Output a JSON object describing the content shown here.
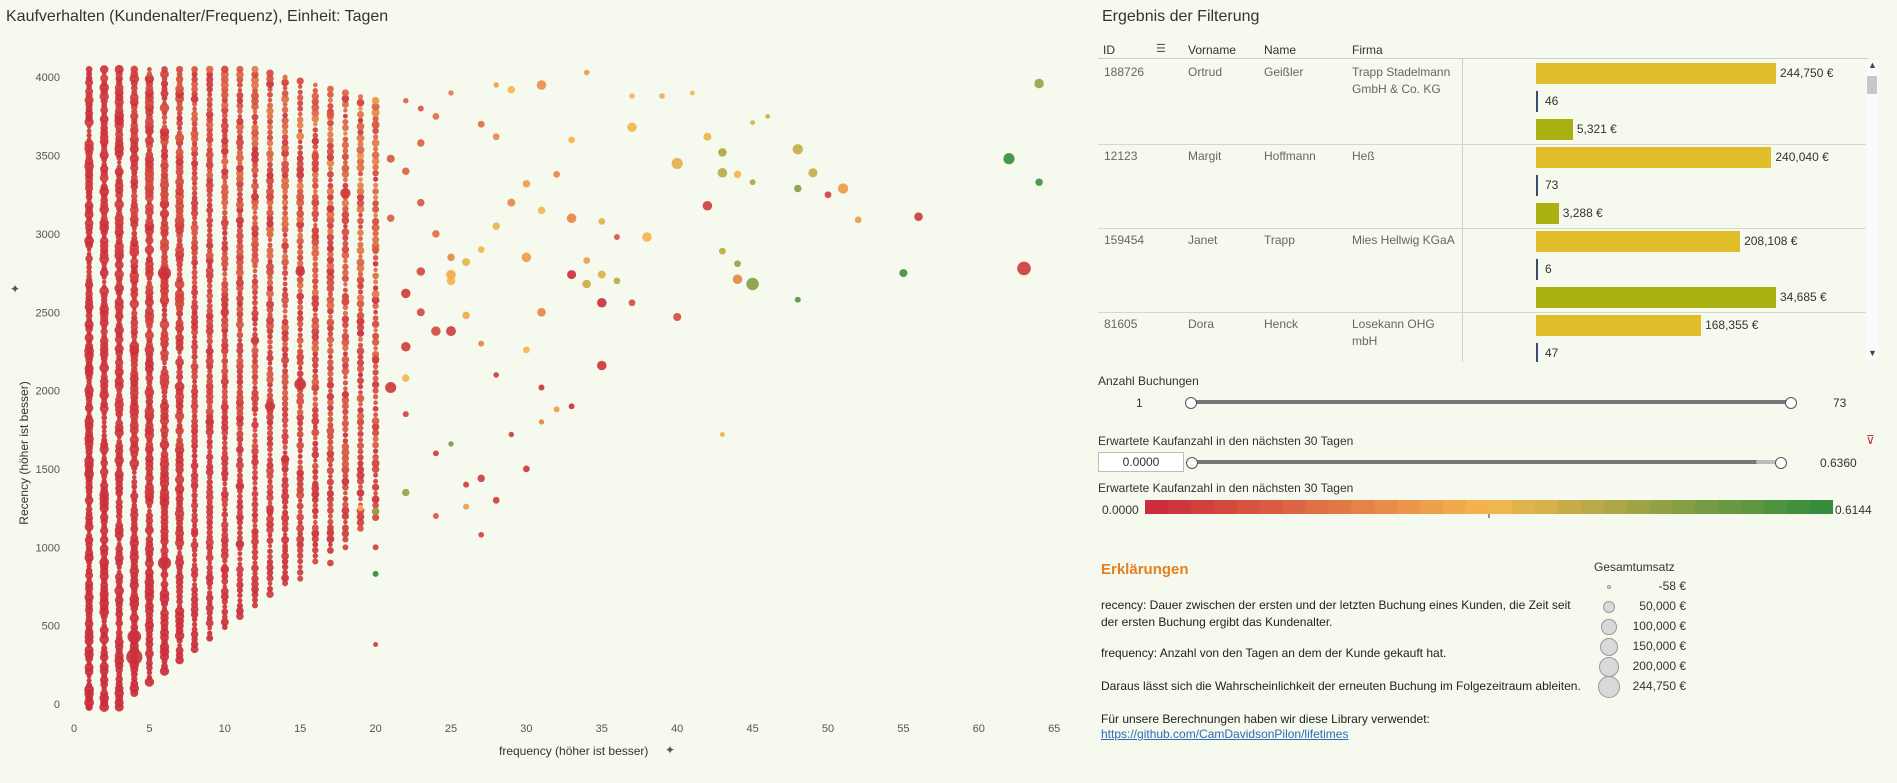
{
  "scatter": {
    "title": "Kaufverhalten (Kundenalter/Frequenz), Einheit: Tagen",
    "xlabel": "frequency (höher ist besser)",
    "ylabel": "Recency (höher ist besser)",
    "xticks": [
      "0",
      "5",
      "10",
      "15",
      "20",
      "25",
      "30",
      "35",
      "40",
      "45",
      "50",
      "55",
      "60",
      "65"
    ],
    "yticks": [
      "0",
      "500",
      "1000",
      "1500",
      "2000",
      "2500",
      "3000",
      "3500",
      "4000"
    ]
  },
  "chart_data": {
    "type": "scatter",
    "title": "Kaufverhalten (Kundenalter/Frequenz), Einheit: Tagen",
    "xlabel": "frequency (höher ist besser)",
    "ylabel": "Recency (höher ist besser)",
    "xlim": [
      0,
      65
    ],
    "ylim": [
      0,
      4000
    ],
    "grid": false,
    "color_scale": {
      "min": 0.0,
      "max": 0.6144,
      "low_color": "#c8283a",
      "mid_color": "#f6b74e",
      "high_color": "#2e8b3c"
    },
    "columns": {
      "x_range": [
        1,
        20
      ],
      "y_range": [
        -20,
        4050
      ]
    },
    "points": [
      {
        "x": 22,
        "y": 3850,
        "v": 0.12,
        "s": 7000
      },
      {
        "x": 25,
        "y": 3900,
        "v": 0.18,
        "s": 7000
      },
      {
        "x": 28,
        "y": 3950,
        "v": 0.25,
        "s": 7000
      },
      {
        "x": 29,
        "y": 3920,
        "v": 0.3,
        "s": 20000
      },
      {
        "x": 31,
        "y": 3950,
        "v": 0.22,
        "s": 40000
      },
      {
        "x": 34,
        "y": 4030,
        "v": 0.25,
        "s": 8000
      },
      {
        "x": 37,
        "y": 3880,
        "v": 0.3,
        "s": 8000
      },
      {
        "x": 39,
        "y": 3880,
        "v": 0.28,
        "s": 8000
      },
      {
        "x": 41,
        "y": 3900,
        "v": 0.3,
        "s": 5000
      },
      {
        "x": 45,
        "y": 3710,
        "v": 0.35,
        "s": 5000
      },
      {
        "x": 46,
        "y": 3750,
        "v": 0.38,
        "s": 4000
      },
      {
        "x": 64,
        "y": 3960,
        "v": 0.45,
        "s": 40000
      },
      {
        "x": 37,
        "y": 3680,
        "v": 0.3,
        "s": 40000
      },
      {
        "x": 42,
        "y": 3620,
        "v": 0.32,
        "s": 25000
      },
      {
        "x": 43,
        "y": 3520,
        "v": 0.42,
        "s": 30000
      },
      {
        "x": 48,
        "y": 3540,
        "v": 0.38,
        "s": 50000
      },
      {
        "x": 40,
        "y": 3450,
        "v": 0.34,
        "s": 60000
      },
      {
        "x": 43,
        "y": 3390,
        "v": 0.4,
        "s": 40000
      },
      {
        "x": 45,
        "y": 3330,
        "v": 0.42,
        "s": 10000
      },
      {
        "x": 48,
        "y": 3290,
        "v": 0.48,
        "s": 20000
      },
      {
        "x": 49,
        "y": 3390,
        "v": 0.38,
        "s": 35000
      },
      {
        "x": 51,
        "y": 3290,
        "v": 0.25,
        "s": 50000
      },
      {
        "x": 50,
        "y": 3250,
        "v": 0.06,
        "s": 15000
      },
      {
        "x": 62,
        "y": 3480,
        "v": 0.6,
        "s": 60000
      },
      {
        "x": 64,
        "y": 3330,
        "v": 0.58,
        "s": 20000
      },
      {
        "x": 56,
        "y": 3110,
        "v": 0.04,
        "s": 30000
      },
      {
        "x": 52,
        "y": 3090,
        "v": 0.25,
        "s": 15000
      },
      {
        "x": 44,
        "y": 3380,
        "v": 0.3,
        "s": 20000
      },
      {
        "x": 42,
        "y": 3180,
        "v": 0.05,
        "s": 40000
      },
      {
        "x": 38,
        "y": 2980,
        "v": 0.3,
        "s": 40000
      },
      {
        "x": 43,
        "y": 2890,
        "v": 0.4,
        "s": 15000
      },
      {
        "x": 44,
        "y": 2810,
        "v": 0.45,
        "s": 15000
      },
      {
        "x": 44,
        "y": 2710,
        "v": 0.2,
        "s": 40000
      },
      {
        "x": 45,
        "y": 2680,
        "v": 0.48,
        "s": 80000
      },
      {
        "x": 48,
        "y": 2580,
        "v": 0.55,
        "s": 10000
      },
      {
        "x": 55,
        "y": 2750,
        "v": 0.58,
        "s": 25000
      },
      {
        "x": 63,
        "y": 2780,
        "v": 0.05,
        "s": 100000
      },
      {
        "x": 40,
        "y": 2470,
        "v": 0.08,
        "s": 25000
      },
      {
        "x": 37,
        "y": 2560,
        "v": 0.08,
        "s": 15000
      },
      {
        "x": 36,
        "y": 2700,
        "v": 0.4,
        "s": 15000
      },
      {
        "x": 35,
        "y": 2740,
        "v": 0.35,
        "s": 25000
      },
      {
        "x": 33,
        "y": 2740,
        "v": 0.02,
        "s": 35000
      },
      {
        "x": 34,
        "y": 2680,
        "v": 0.38,
        "s": 30000
      },
      {
        "x": 34,
        "y": 2830,
        "v": 0.25,
        "s": 15000
      },
      {
        "x": 35,
        "y": 2560,
        "v": 0.02,
        "s": 40000
      },
      {
        "x": 30,
        "y": 2850,
        "v": 0.25,
        "s": 40000
      },
      {
        "x": 31,
        "y": 2500,
        "v": 0.2,
        "s": 30000
      },
      {
        "x": 33,
        "y": 3100,
        "v": 0.2,
        "s": 40000
      },
      {
        "x": 35,
        "y": 3080,
        "v": 0.35,
        "s": 15000
      },
      {
        "x": 36,
        "y": 2980,
        "v": 0.1,
        "s": 10000
      },
      {
        "x": 35,
        "y": 2160,
        "v": 0.03,
        "s": 40000
      },
      {
        "x": 31,
        "y": 2020,
        "v": 0.02,
        "s": 10000
      },
      {
        "x": 33,
        "y": 1900,
        "v": 0.02,
        "s": 10000
      },
      {
        "x": 32,
        "y": 1880,
        "v": 0.25,
        "s": 10000
      },
      {
        "x": 43,
        "y": 1720,
        "v": 0.32,
        "s": 5000
      },
      {
        "x": 30,
        "y": 1500,
        "v": 0.04,
        "s": 15000
      },
      {
        "x": 28,
        "y": 1300,
        "v": 0.05,
        "s": 15000
      },
      {
        "x": 27,
        "y": 1440,
        "v": 0.05,
        "s": 20000
      },
      {
        "x": 26,
        "y": 1400,
        "v": 0.05,
        "s": 10000
      },
      {
        "x": 22,
        "y": 1350,
        "v": 0.45,
        "s": 20000
      },
      {
        "x": 24,
        "y": 1200,
        "v": 0.1,
        "s": 10000
      },
      {
        "x": 20,
        "y": 1230,
        "v": 0.45,
        "s": 20000
      },
      {
        "x": 20,
        "y": 1000,
        "v": 0.04,
        "s": 10000
      },
      {
        "x": 20,
        "y": 830,
        "v": 0.61,
        "s": 10000
      },
      {
        "x": 20,
        "y": 380,
        "v": 0.04,
        "s": 5000
      },
      {
        "x": 19,
        "y": 1250,
        "v": 0.3,
        "s": 10000
      },
      {
        "x": 18,
        "y": 1000,
        "v": 0.05,
        "s": 10000
      },
      {
        "x": 26,
        "y": 1260,
        "v": 0.25,
        "s": 10000
      },
      {
        "x": 27,
        "y": 1080,
        "v": 0.05,
        "s": 8000
      },
      {
        "x": 24,
        "y": 1600,
        "v": 0.05,
        "s": 10000
      },
      {
        "x": 25,
        "y": 1660,
        "v": 0.5,
        "s": 7000
      },
      {
        "x": 22,
        "y": 1850,
        "v": 0.06,
        "s": 10000
      },
      {
        "x": 29,
        "y": 1720,
        "v": 0.04,
        "s": 7000
      },
      {
        "x": 31,
        "y": 1800,
        "v": 0.2,
        "s": 7000
      },
      {
        "x": 28,
        "y": 2100,
        "v": 0.04,
        "s": 8000
      },
      {
        "x": 27,
        "y": 2300,
        "v": 0.2,
        "s": 10000
      },
      {
        "x": 26,
        "y": 2480,
        "v": 0.28,
        "s": 20000
      },
      {
        "x": 25,
        "y": 2700,
        "v": 0.3,
        "s": 30000
      },
      {
        "x": 26,
        "y": 2820,
        "v": 0.33,
        "s": 25000
      },
      {
        "x": 27,
        "y": 2900,
        "v": 0.3,
        "s": 15000
      },
      {
        "x": 28,
        "y": 3050,
        "v": 0.33,
        "s": 20000
      },
      {
        "x": 29,
        "y": 3200,
        "v": 0.2,
        "s": 25000
      },
      {
        "x": 30,
        "y": 3320,
        "v": 0.25,
        "s": 20000
      },
      {
        "x": 31,
        "y": 3150,
        "v": 0.3,
        "s": 20000
      },
      {
        "x": 32,
        "y": 3380,
        "v": 0.2,
        "s": 15000
      },
      {
        "x": 33,
        "y": 3600,
        "v": 0.3,
        "s": 15000
      },
      {
        "x": 28,
        "y": 3620,
        "v": 0.2,
        "s": 15000
      },
      {
        "x": 27,
        "y": 3700,
        "v": 0.15,
        "s": 15000
      },
      {
        "x": 24,
        "y": 3750,
        "v": 0.15,
        "s": 15000
      },
      {
        "x": 23,
        "y": 3580,
        "v": 0.12,
        "s": 20000
      },
      {
        "x": 22,
        "y": 3400,
        "v": 0.12,
        "s": 20000
      },
      {
        "x": 23,
        "y": 3200,
        "v": 0.1,
        "s": 20000
      },
      {
        "x": 24,
        "y": 3000,
        "v": 0.15,
        "s": 20000
      },
      {
        "x": 25,
        "y": 2850,
        "v": 0.2,
        "s": 20000
      },
      {
        "x": 23,
        "y": 2500,
        "v": 0.08,
        "s": 25000
      },
      {
        "x": 22,
        "y": 2280,
        "v": 0.05,
        "s": 40000
      },
      {
        "x": 24,
        "y": 2380,
        "v": 0.08,
        "s": 40000
      },
      {
        "x": 25,
        "y": 2380,
        "v": 0.05,
        "s": 45000
      },
      {
        "x": 22,
        "y": 2080,
        "v": 0.3,
        "s": 20000
      },
      {
        "x": 21,
        "y": 2020,
        "v": 0.04,
        "s": 60000
      },
      {
        "x": 20,
        "y": 2200,
        "v": 0.05,
        "s": 20000
      },
      {
        "x": 22,
        "y": 2620,
        "v": 0.05,
        "s": 40000
      },
      {
        "x": 23,
        "y": 2760,
        "v": 0.07,
        "s": 30000
      },
      {
        "x": 25,
        "y": 2740,
        "v": 0.28,
        "s": 40000
      },
      {
        "x": 30,
        "y": 2260,
        "v": 0.3,
        "s": 15000
      },
      {
        "x": 19,
        "y": 2440,
        "v": 0.06,
        "s": 20000
      },
      {
        "x": 18,
        "y": 2600,
        "v": 0.08,
        "s": 20000
      },
      {
        "x": 20,
        "y": 2900,
        "v": 0.1,
        "s": 20000
      },
      {
        "x": 21,
        "y": 3100,
        "v": 0.12,
        "s": 20000
      },
      {
        "x": 21,
        "y": 3480,
        "v": 0.1,
        "s": 25000
      },
      {
        "x": 20,
        "y": 3700,
        "v": 0.12,
        "s": 20000
      },
      {
        "x": 16,
        "y": 2980,
        "v": 0.06,
        "s": 20000
      },
      {
        "x": 16,
        "y": 3500,
        "v": 0.08,
        "s": 20000
      },
      {
        "x": 17,
        "y": 3760,
        "v": 0.1,
        "s": 20000
      },
      {
        "x": 15,
        "y": 2040,
        "v": 0.03,
        "s": 70000
      },
      {
        "x": 15,
        "y": 2760,
        "v": 0.03,
        "s": 40000
      },
      {
        "x": 13,
        "y": 1900,
        "v": 0.03,
        "s": 50000
      },
      {
        "x": 14,
        "y": 1560,
        "v": 0.03,
        "s": 30000
      },
      {
        "x": 13,
        "y": 1230,
        "v": 0.04,
        "s": 20000
      },
      {
        "x": 11,
        "y": 1390,
        "v": 0.03,
        "s": 30000
      },
      {
        "x": 12,
        "y": 1100,
        "v": 0.04,
        "s": 20000
      },
      {
        "x": 16,
        "y": 1400,
        "v": 0.05,
        "s": 15000
      },
      {
        "x": 17,
        "y": 1100,
        "v": 0.05,
        "s": 15000
      },
      {
        "x": 17,
        "y": 900,
        "v": 0.05,
        "s": 15000
      },
      {
        "x": 15,
        "y": 800,
        "v": 0.05,
        "s": 10000
      },
      {
        "x": 14,
        "y": 1000,
        "v": 0.05,
        "s": 10000
      },
      {
        "x": 18,
        "y": 3260,
        "v": 0.04,
        "s": 50000
      },
      {
        "x": 23,
        "y": 3800,
        "v": 0.1,
        "s": 10000
      },
      {
        "x": 6,
        "y": 2750,
        "v": 0.02,
        "s": 90000
      },
      {
        "x": 6,
        "y": 900,
        "v": 0.02,
        "s": 90000
      },
      {
        "x": 4,
        "y": 300,
        "v": 0.02,
        "s": 150000
      },
      {
        "x": 4,
        "y": 430,
        "v": 0.02,
        "s": 100000
      },
      {
        "x": 10,
        "y": 860,
        "v": 0.03,
        "s": 30000
      },
      {
        "x": 11,
        "y": 1020,
        "v": 0.04,
        "s": 30000
      },
      {
        "x": 8,
        "y": 1090,
        "v": 0.03,
        "s": 20000
      },
      {
        "x": 9,
        "y": 1800,
        "v": 0.04,
        "s": 30000
      },
      {
        "x": 10,
        "y": 2500,
        "v": 0.05,
        "s": 30000
      },
      {
        "x": 12,
        "y": 2320,
        "v": 0.05,
        "s": 30000
      },
      {
        "x": 1,
        "y": -20,
        "v": 0.02,
        "s": 20000
      }
    ]
  },
  "table": {
    "title": "Ergebnis der Filterung",
    "headers": {
      "id": "ID",
      "first": "Vorname",
      "last": "Name",
      "company": "Firma"
    },
    "rows": [
      {
        "id": "188726",
        "first": "Ortrud",
        "last": "Geißler",
        "company": "Trapp Stadelmann GmbH & Co. KG",
        "umsatz": 244750,
        "umsatz_label": "244,750 €",
        "buchungen": 46,
        "buchungen_label": "46",
        "zuletzt": 5321,
        "zuletzt_label": "5,321 €"
      },
      {
        "id": "12123",
        "first": "Margit",
        "last": "Hoffmann",
        "company": "Heß",
        "umsatz": 240040,
        "umsatz_label": "240,040 €",
        "buchungen": 73,
        "buchungen_label": "73",
        "zuletzt": 3288,
        "zuletzt_label": "3,288 €"
      },
      {
        "id": "159454",
        "first": "Janet",
        "last": "Trapp",
        "company": "Mies Hellwig KGaA",
        "umsatz": 208108,
        "umsatz_label": "208,108 €",
        "buchungen": 6,
        "buchungen_label": "6",
        "zuletzt": 34685,
        "zuletzt_label": "34,685 €"
      },
      {
        "id": "81605",
        "first": "Dora",
        "last": "Henck",
        "company": "Losekann OHG mbH",
        "umsatz": 168355,
        "umsatz_label": "168,355 €",
        "buchungen": 47,
        "buchungen_label": "47",
        "zuletzt": null,
        "zuletzt_label": ""
      }
    ],
    "colors": {
      "umsatz": "#e2bd2b",
      "buchungen": "#3a4d6b",
      "zuletzt": "#a8b012"
    }
  },
  "filter_bookings": {
    "label": "Anzahl Buchungen",
    "min": "1",
    "max": "73"
  },
  "filter_expected": {
    "label": "Erwartete Kaufanzahl in den nächsten 30 Tagen",
    "min_value": "0.0000",
    "max_value": "0.6360",
    "clear_icon": "filter-clear-icon"
  },
  "color_legend": {
    "label": "Erwartete Kaufanzahl in den nächsten 30 Tagen",
    "min": "0.0000",
    "max": "0.6144"
  },
  "explanations": {
    "title": "Erklärungen",
    "recency": "recency: Dauer zwischen der ersten und der letzten Buchung eines Kunden, die Zeit seit der ersten Buchung ergibt das Kundenalter.",
    "frequency": "frequency: Anzahl von den Tagen an dem der Kunde gekauft hat.",
    "derive": "Daraus lässt sich die Wahrscheinlichkeit der erneuten Buchung im Folgezeitraum ableiten.",
    "library_text": "Für unsere Berechnungen haben wir diese Library verwendet:",
    "library_link": "https://github.com/CamDavidsonPilon/lifetimes"
  },
  "size_legend": {
    "title": "Gesamtumsatz",
    "items": [
      {
        "label": "-58 €",
        "value": -58
      },
      {
        "label": "50,000 €",
        "value": 50000
      },
      {
        "label": "100,000 €",
        "value": 100000
      },
      {
        "label": "150,000 €",
        "value": 150000
      },
      {
        "label": "200,000 €",
        "value": 200000
      },
      {
        "label": "244,750 €",
        "value": 244750
      }
    ]
  }
}
